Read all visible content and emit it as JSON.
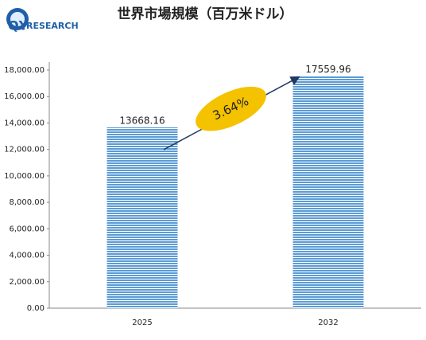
{
  "logo": {
    "mark": "QY",
    "text": "RESEARCH"
  },
  "chart_data": {
    "type": "bar",
    "title": "世界市場規模（百万米ドル）",
    "categories": [
      "2025",
      "2032"
    ],
    "values": [
      13668.16,
      17559.96
    ],
    "color": "#5b9bd5",
    "ylim": [
      0,
      18000
    ],
    "yticks": [
      {
        "value": 0,
        "label": "0.00"
      },
      {
        "value": 2000,
        "label": "2,000.00"
      },
      {
        "value": 4000,
        "label": "4,000.00"
      },
      {
        "value": 6000,
        "label": "6,000.00"
      },
      {
        "value": 8000,
        "label": "8,000.00"
      },
      {
        "value": 10000,
        "label": "10,000.00"
      },
      {
        "value": 12000,
        "label": "12,000.00"
      },
      {
        "value": 14000,
        "label": "14,000.00"
      },
      {
        "value": 16000,
        "label": "16,000.00"
      },
      {
        "value": 18000,
        "label": "18,000.00"
      }
    ],
    "grid": false,
    "annotation": "3.64%"
  }
}
